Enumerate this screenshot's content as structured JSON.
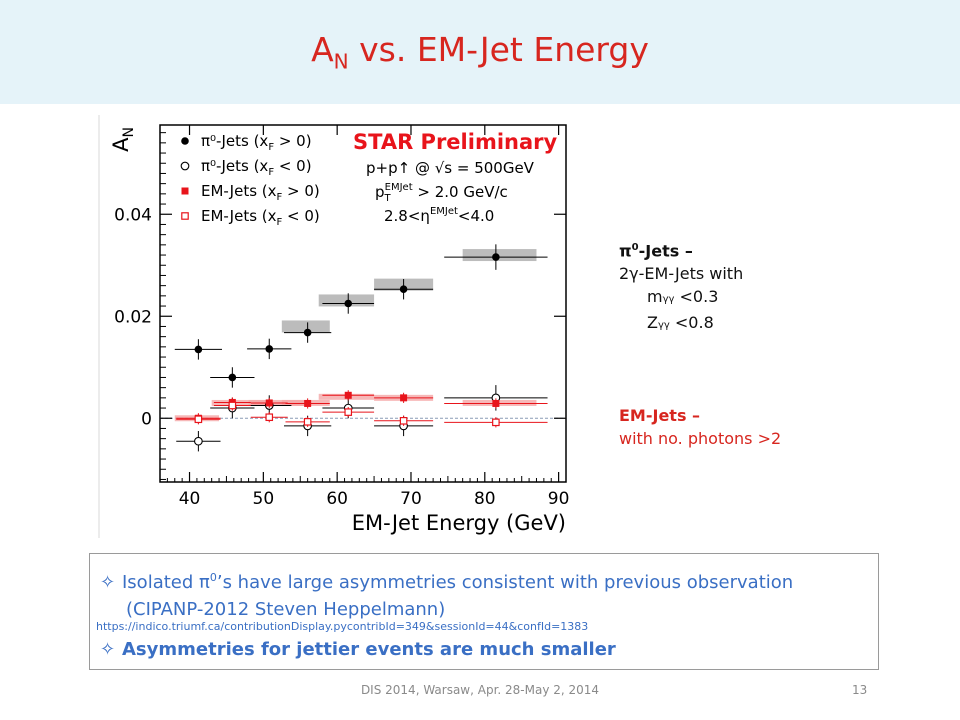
{
  "title": {
    "main": "A",
    "sub": "N",
    "rest": " vs. EM-Jet Energy"
  },
  "chart_data": {
    "type": "scatter",
    "xlabel": "EM-Jet Energy (GeV)",
    "ylabel": "A_N",
    "xlim": [
      36,
      91
    ],
    "ylim": [
      -0.0125,
      0.0575
    ],
    "xticks": [
      40,
      50,
      60,
      70,
      80,
      90
    ],
    "yticks": [
      {
        "v": 0,
        "label": "0"
      },
      {
        "v": 0.02,
        "label": "0.02"
      },
      {
        "v": 0.04,
        "label": "0.04"
      }
    ],
    "stamp": "STAR Preliminary",
    "info": [
      "p+p↑ @ √s = 500GeV",
      "p_T^EMJet > 2.0 GeV/c",
      "2.8<η^EMJet<4.0"
    ],
    "legend": [
      {
        "label": "π⁰-Jets (x_F > 0)",
        "marker": "filled-circle",
        "color": "#000000"
      },
      {
        "label": "π⁰-Jets (x_F < 0)",
        "marker": "open-circle",
        "color": "#000000"
      },
      {
        "label": "EM-Jets (x_F > 0)",
        "marker": "filled-square",
        "color": "#e8141b"
      },
      {
        "label": "EM-Jets (x_F < 0)",
        "marker": "open-square",
        "color": "#e8141b"
      }
    ],
    "series": [
      {
        "name": "π⁰-Jets (x_F > 0)",
        "marker": "filled-circle",
        "color": "#000000",
        "points": [
          {
            "x": 41.2,
            "y": 0.0135,
            "xerr": 3.2,
            "yerr": 0.002
          },
          {
            "x": 45.8,
            "y": 0.008,
            "xerr": 3.0,
            "yerr": 0.002
          },
          {
            "x": 50.8,
            "y": 0.0136,
            "xerr": 3.0,
            "yerr": 0.002
          },
          {
            "x": 56.0,
            "y": 0.0168,
            "xerr": 3.2,
            "yerr": 0.002
          },
          {
            "x": 61.5,
            "y": 0.0225,
            "xerr": 3.5,
            "yerr": 0.002
          },
          {
            "x": 69.0,
            "y": 0.0253,
            "xerr": 4.0,
            "yerr": 0.002
          },
          {
            "x": 81.5,
            "y": 0.0316,
            "xerr": 7.0,
            "yerr": 0.0025
          }
        ],
        "sys": [
          {
            "x0": 52.5,
            "x1": 59.0,
            "y": 0.018
          },
          {
            "x0": 57.5,
            "x1": 65.0,
            "y": 0.0231
          },
          {
            "x0": 65.0,
            "x1": 73.0,
            "y": 0.0262
          },
          {
            "x0": 77.0,
            "x1": 87.0,
            "y": 0.032
          }
        ]
      },
      {
        "name": "π⁰-Jets (x_F < 0)",
        "marker": "open-circle",
        "color": "#000000",
        "points": [
          {
            "x": 41.2,
            "y": -0.0045,
            "xerr": 3.0,
            "yerr": 0.002
          },
          {
            "x": 45.8,
            "y": 0.002,
            "xerr": 3.0,
            "yerr": 0.002
          },
          {
            "x": 50.8,
            "y": 0.0025,
            "xerr": 3.0,
            "yerr": 0.002
          },
          {
            "x": 56.0,
            "y": -0.0015,
            "xerr": 3.2,
            "yerr": 0.002
          },
          {
            "x": 61.5,
            "y": 0.002,
            "xerr": 3.5,
            "yerr": 0.002
          },
          {
            "x": 69.0,
            "y": -0.0015,
            "xerr": 4.0,
            "yerr": 0.002
          },
          {
            "x": 81.5,
            "y": 0.004,
            "xerr": 7.0,
            "yerr": 0.0025
          }
        ]
      },
      {
        "name": "EM-Jets (x_F > 0)",
        "marker": "filled-square",
        "color": "#e8141b",
        "points": [
          {
            "x": 41.2,
            "y": 0.0,
            "xerr": 3.0,
            "yerr": 0.001
          },
          {
            "x": 45.8,
            "y": 0.0031,
            "xerr": 2.5,
            "yerr": 0.001
          },
          {
            "x": 50.8,
            "y": 0.003,
            "xerr": 2.5,
            "yerr": 0.001
          },
          {
            "x": 56.0,
            "y": 0.0029,
            "xerr": 3.0,
            "yerr": 0.001
          },
          {
            "x": 61.5,
            "y": 0.0045,
            "xerr": 3.5,
            "yerr": 0.001
          },
          {
            "x": 69.0,
            "y": 0.004,
            "xerr": 4.0,
            "yerr": 0.001
          },
          {
            "x": 81.5,
            "y": 0.0029,
            "xerr": 7.0,
            "yerr": 0.001
          }
        ],
        "sys": [
          {
            "x0": 38.0,
            "x1": 44.0,
            "y": 0.0
          },
          {
            "x0": 43.0,
            "x1": 51.0,
            "y": 0.003
          },
          {
            "x0": 48.0,
            "x1": 55.5,
            "y": 0.003
          },
          {
            "x0": 52.5,
            "x1": 59.0,
            "y": 0.003
          },
          {
            "x0": 57.5,
            "x1": 65.0,
            "y": 0.0042
          },
          {
            "x0": 65.0,
            "x1": 73.0,
            "y": 0.004
          },
          {
            "x0": 77.0,
            "x1": 87.0,
            "y": 0.003
          }
        ]
      },
      {
        "name": "EM-Jets (x_F < 0)",
        "marker": "open-square",
        "color": "#e8141b",
        "points": [
          {
            "x": 41.2,
            "y": -0.0002,
            "xerr": 3.0,
            "yerr": 0.001
          },
          {
            "x": 45.8,
            "y": 0.0025,
            "xerr": 2.5,
            "yerr": 0.001
          },
          {
            "x": 50.8,
            "y": 0.0002,
            "xerr": 2.5,
            "yerr": 0.001
          },
          {
            "x": 56.0,
            "y": -0.0007,
            "xerr": 3.0,
            "yerr": 0.001
          },
          {
            "x": 61.5,
            "y": 0.0012,
            "xerr": 3.5,
            "yerr": 0.001
          },
          {
            "x": 69.0,
            "y": -0.0005,
            "xerr": 4.0,
            "yerr": 0.001
          },
          {
            "x": 81.5,
            "y": -0.0008,
            "xerr": 7.0,
            "yerr": 0.001
          }
        ]
      }
    ]
  },
  "side_a": {
    "head": "π",
    "head_sup": "0",
    "head_rest": "-Jets –",
    "line2": "2γ-EM-Jets  with",
    "line3a": "m",
    "line3sub": "γγ",
    "line3b": " <0.3",
    "line4a": "Z",
    "line4sub": "γγ",
    "line4b": " <0.8"
  },
  "side_b": {
    "head": "EM-Jets –",
    "line2": "with no. photons >2"
  },
  "box": {
    "star": "✧",
    "l1a": "Isolated π",
    "l1sup": "0",
    "l1b": "’s have large asymmetries consistent with previous observation",
    "l2": "(CIPANP-2012  Steven Heppelmann)",
    "link": "https://indico.triumf.ca/contributionDisplay.pycontribId=349&sessionId=44&confId=1383",
    "l3": "Asymmetries for jettier events are much smaller"
  },
  "footer": "DIS 2014,  Warsaw,  Apr. 28-May 2, 2014",
  "page_number": "13"
}
